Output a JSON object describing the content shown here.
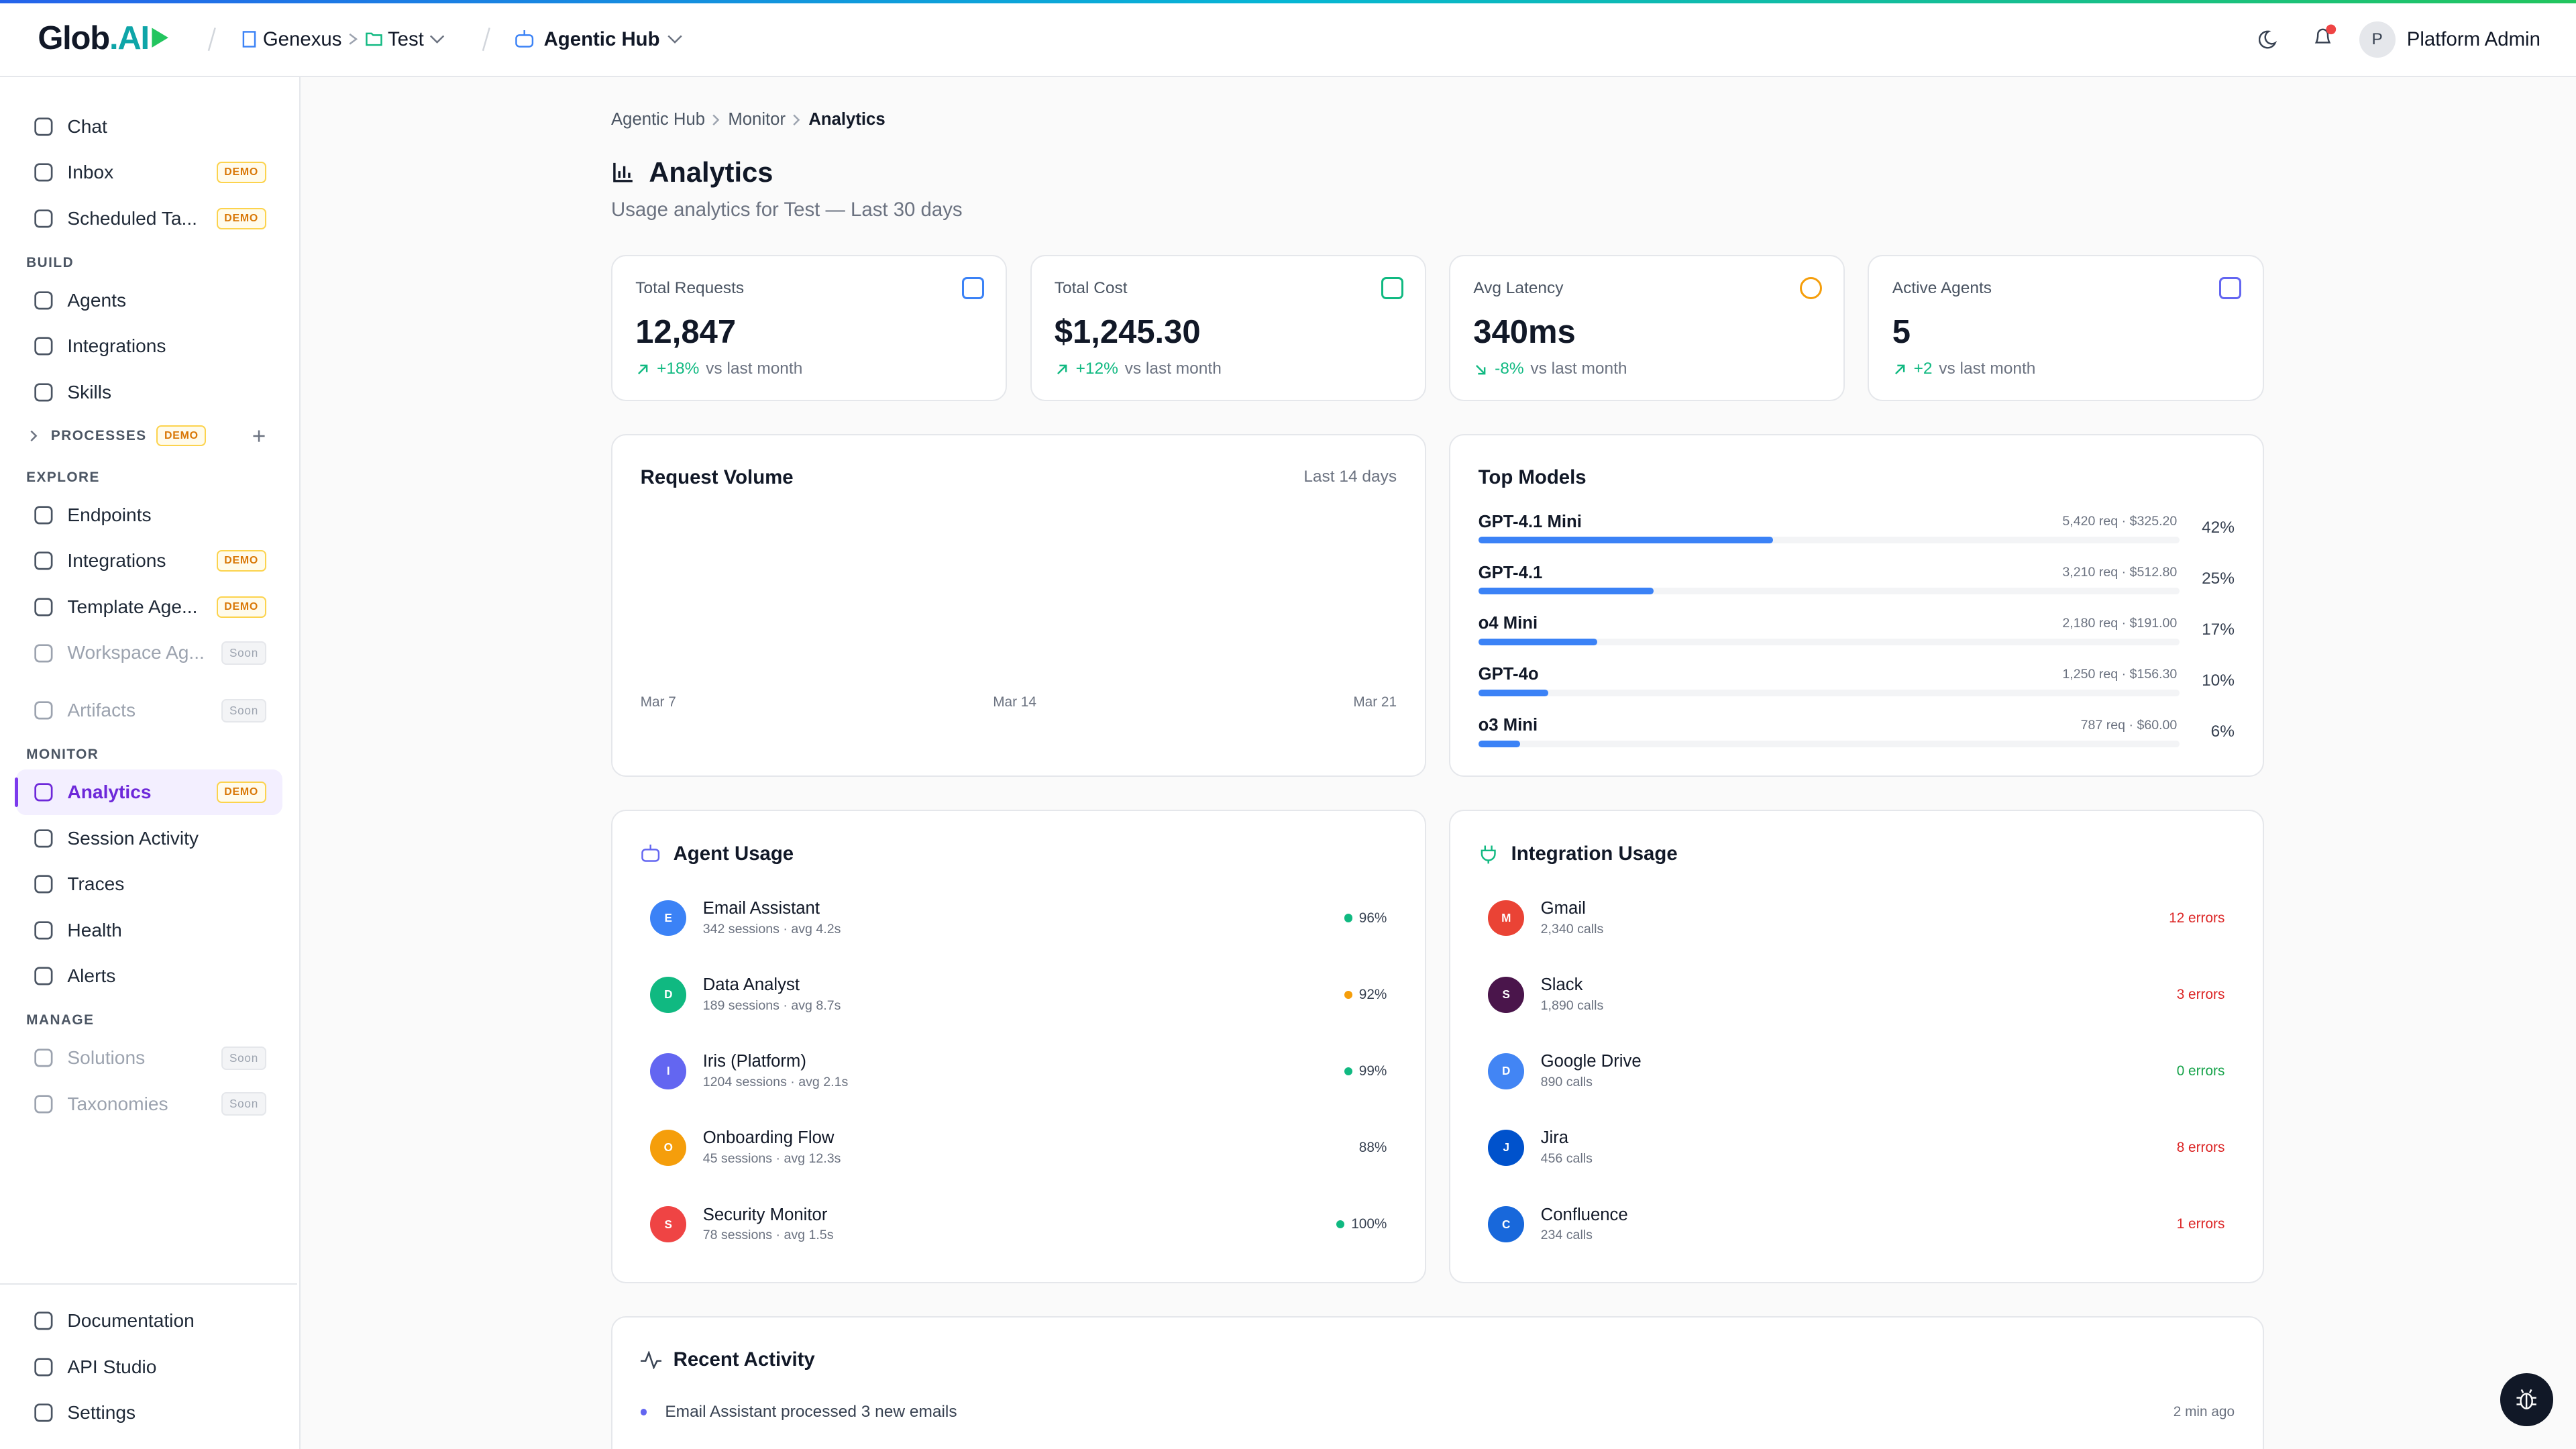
{
  "header": {
    "logo_main": "Glob",
    "logo_accent": ".AI",
    "org": "Genexus",
    "project": "Test",
    "app": "Agentic Hub",
    "user_initial": "P",
    "user": "Platform Admin"
  },
  "sidebar": {
    "groups": [
      {
        "items": [
          {
            "label": "Chat"
          },
          {
            "label": "Inbox",
            "badge": "DEMO"
          },
          {
            "label": "Scheduled Ta...",
            "badge": "DEMO"
          }
        ]
      },
      {
        "label": "BUILD",
        "items": [
          {
            "label": "Agents"
          },
          {
            "label": "Integrations"
          },
          {
            "label": "Skills"
          }
        ]
      },
      {
        "label": "PROCESSES",
        "badge": "DEMO",
        "collapsed": true
      },
      {
        "label": "EXPLORE",
        "items": [
          {
            "label": "Endpoints"
          },
          {
            "label": "Integrations",
            "badge": "DEMO"
          },
          {
            "label": "Template Age...",
            "badge": "DEMO"
          },
          {
            "label": "Workspace Ag...",
            "badge": "Soon",
            "disabled": true
          }
        ]
      },
      {
        "items": [
          {
            "label": "Artifacts",
            "badge": "Soon",
            "disabled": true
          }
        ]
      },
      {
        "label": "MONITOR",
        "items": [
          {
            "label": "Analytics",
            "badge": "DEMO",
            "active": true
          },
          {
            "label": "Session Activity"
          },
          {
            "label": "Traces"
          },
          {
            "label": "Health"
          },
          {
            "label": "Alerts"
          }
        ]
      },
      {
        "label": "MANAGE",
        "items": [
          {
            "label": "Solutions",
            "badge": "Soon",
            "disabled": true
          },
          {
            "label": "Taxonomies",
            "badge": "Soon",
            "disabled": true
          }
        ]
      }
    ],
    "footer": [
      {
        "label": "Documentation"
      },
      {
        "label": "API Studio"
      },
      {
        "label": "Settings"
      }
    ]
  },
  "breadcrumb": [
    "Agentic Hub",
    "Monitor",
    "Analytics"
  ],
  "page": {
    "title": "Analytics",
    "subtitle": "Usage analytics for Test — Last 30 days"
  },
  "stats": [
    {
      "label": "Total Requests",
      "value": "12,847",
      "change": "+18%",
      "note": "vs last month",
      "color": "#3b82f6",
      "trend": "up"
    },
    {
      "label": "Total Cost",
      "value": "$1,245.30",
      "change": "+12%",
      "note": "vs last month",
      "color": "#10b981",
      "trend": "up"
    },
    {
      "label": "Avg Latency",
      "value": "340ms",
      "change": "-8%",
      "note": "vs last month",
      "color": "#f59e0b",
      "trend": "down"
    },
    {
      "label": "Active Agents",
      "value": "5",
      "change": "+2",
      "note": "vs last month",
      "color": "#6366f1",
      "trend": "up"
    }
  ],
  "request_volume": {
    "title": "Request Volume",
    "range": "Last 14 days",
    "x_labels": [
      "Mar 7",
      "Mar 14",
      "Mar 21"
    ]
  },
  "top_models": {
    "title": "Top Models",
    "color": "#3b82f6",
    "models": [
      {
        "name": "GPT-4.1 Mini",
        "detail": "5,420 req · $325.20",
        "share": {
          "value": 42,
          "label": "42%"
        }
      },
      {
        "name": "GPT-4.1",
        "detail": "3,210 req · $512.80",
        "share": {
          "value": 25,
          "label": "25%"
        }
      },
      {
        "name": "o4 Mini",
        "detail": "2,180 req · $191.00",
        "share": {
          "value": 17,
          "label": "17%"
        }
      },
      {
        "name": "GPT-4o",
        "detail": "1,250 req · $156.30",
        "share": {
          "value": 10,
          "label": "10%"
        }
      },
      {
        "name": "o3 Mini",
        "detail": "787 req · $60.00",
        "share": {
          "value": 6,
          "label": "6%"
        }
      }
    ]
  },
  "agent_usage": {
    "title": "Agent Usage",
    "agents": [
      {
        "initial": "E",
        "name": "Email Assistant",
        "detail": "342 sessions · avg 4.2s",
        "success": "96%",
        "avatar": "#3b82f6",
        "dot": "#10b981"
      },
      {
        "initial": "D",
        "name": "Data Analyst",
        "detail": "189 sessions · avg 8.7s",
        "success": "92%",
        "avatar": "#10b981",
        "dot": "#f59e0b"
      },
      {
        "initial": "I",
        "name": "Iris (Platform)",
        "detail": "1204 sessions · avg 2.1s",
        "success": "99%",
        "avatar": "#6366f1",
        "dot": "#10b981"
      },
      {
        "initial": "O",
        "name": "Onboarding Flow",
        "detail": "45 sessions · avg 12.3s",
        "success": "88%",
        "avatar": "#f59e0b",
        "dot": null
      },
      {
        "initial": "S",
        "name": "Security Monitor",
        "detail": "78 sessions · avg 1.5s",
        "success": "100%",
        "avatar": "#ef4444",
        "dot": "#10b981"
      }
    ]
  },
  "integration_usage": {
    "title": "Integration Usage",
    "integrations": [
      {
        "initial": "M",
        "name": "Gmail",
        "detail": "2,340 calls",
        "errors": "12 errors",
        "avatar": "#ea4335",
        "error_color": "#dc2626"
      },
      {
        "initial": "S",
        "name": "Slack",
        "detail": "1,890 calls",
        "errors": "3 errors",
        "avatar": "#4a154b",
        "error_color": "#dc2626"
      },
      {
        "initial": "D",
        "name": "Google Drive",
        "detail": "890 calls",
        "errors": "0 errors",
        "avatar": "#4285f4",
        "error_color": "#16a34a"
      },
      {
        "initial": "J",
        "name": "Jira",
        "detail": "456 calls",
        "errors": "8 errors",
        "avatar": "#0052cc",
        "error_color": "#dc2626"
      },
      {
        "initial": "C",
        "name": "Confluence",
        "detail": "234 calls",
        "errors": "1 errors",
        "avatar": "#1868db",
        "error_color": "#dc2626"
      }
    ]
  },
  "recent_activity": {
    "title": "Recent Activity",
    "items": [
      {
        "text": "Email Assistant processed 3 new emails",
        "time": "2 min ago",
        "color": "#6366f1"
      }
    ]
  }
}
